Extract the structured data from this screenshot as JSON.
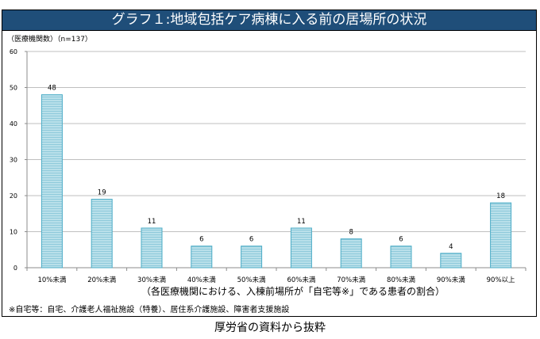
{
  "chart_data": {
    "type": "bar",
    "title": "グラフ１:地域包括ケア病棟に入る前の居場所の状況",
    "ylabel": "（医療機関数）（n=137）",
    "xlabel": "（各医療機関における、入棟前場所が「自宅等※」である患者の割合）",
    "categories": [
      "10%未満",
      "20%未満",
      "30%未満",
      "40%未満",
      "50%未満",
      "60%未満",
      "70%未満",
      "80%未満",
      "90%未満",
      "90%以上"
    ],
    "values": [
      48,
      19,
      11,
      6,
      6,
      11,
      8,
      6,
      4,
      18
    ],
    "ylim": [
      0,
      60
    ],
    "yticks": [
      "0",
      "10",
      "20",
      "30",
      "40",
      "50",
      "60"
    ],
    "grid": true,
    "bar_color": "#a5d5e3",
    "bar_edge_color": "#4bacc6",
    "title_bg_color": "#1f4e79"
  },
  "footnote": "※自宅等：自宅、介護老人福祉施設（特養）、居住系介護施設、障害者支援施設",
  "source": "厚労省の資料から抜粋"
}
